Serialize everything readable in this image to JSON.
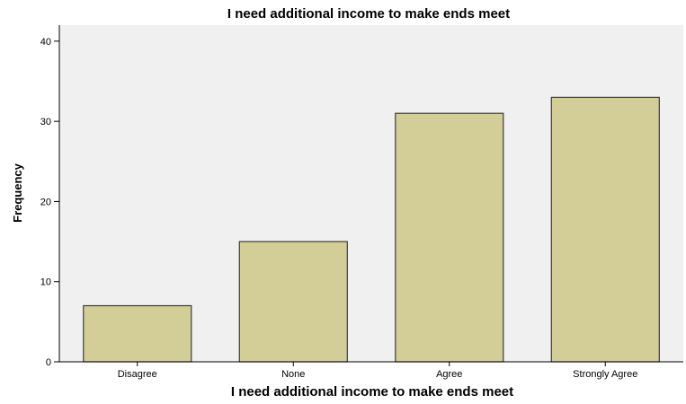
{
  "chart_data": {
    "type": "bar",
    "title": "I need additional income to make ends meet",
    "xlabel": "I need additional income to make ends meet",
    "ylabel": "Frequency",
    "categories": [
      "Disagree",
      "None",
      "Agree",
      "Strongly Agree"
    ],
    "values": [
      7,
      15,
      31,
      33
    ],
    "ylim": [
      0,
      42
    ],
    "yticks": [
      0,
      10,
      20,
      30,
      40
    ],
    "grid": false,
    "legend": "none"
  },
  "colors": {
    "plot_background": "#f0f0f0",
    "bar_fill": "#d3ce97",
    "bar_stroke": "#3b3b3b",
    "axis": "#000000"
  }
}
